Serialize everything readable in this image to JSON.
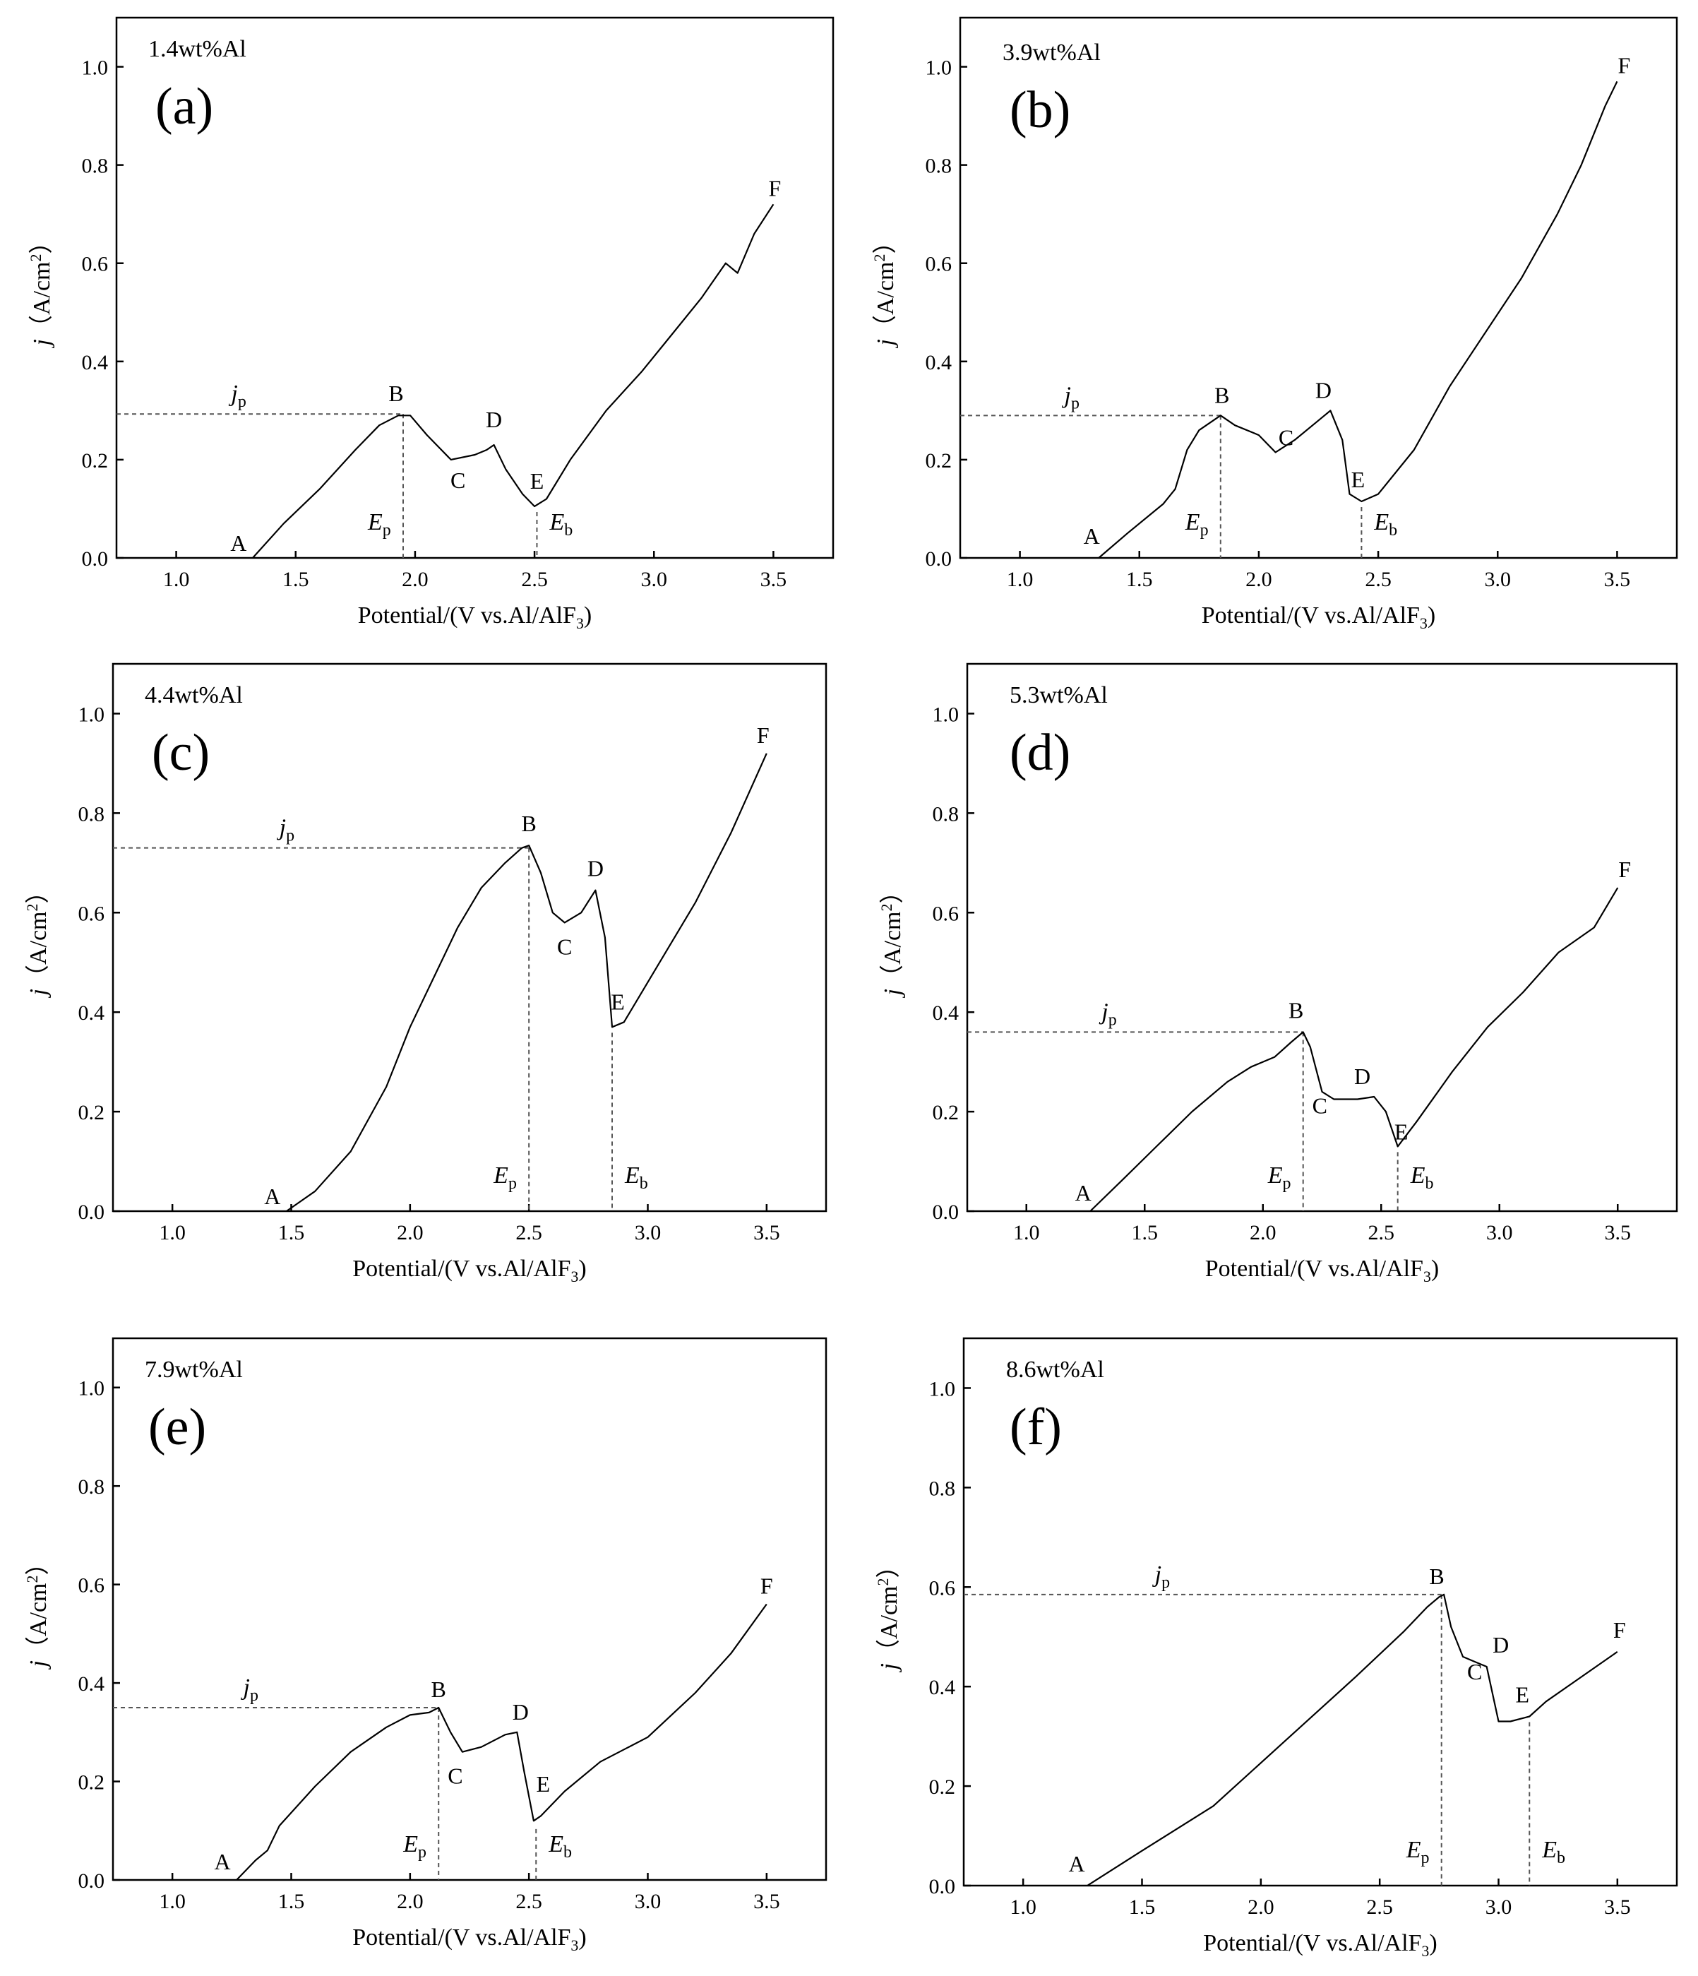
{
  "chart_data": [
    {
      "panel": "(a)",
      "type": "line",
      "title": "1.4wt%Al",
      "xlabel": "Potential/(V vs.Al/AlF3)",
      "ylabel": "j (A/cm2)",
      "xlim": [
        0.75,
        3.75
      ],
      "ylim": [
        0,
        1.1
      ],
      "xticks": [
        1.0,
        1.5,
        2.0,
        2.5,
        3.0,
        3.5
      ],
      "yticks": [
        0.0,
        0.2,
        0.4,
        0.6,
        0.8,
        1.0
      ],
      "series": [
        {
          "name": "polarization curve",
          "x": [
            1.32,
            1.45,
            1.6,
            1.75,
            1.85,
            1.93,
            1.98,
            2.05,
            2.15,
            2.25,
            2.3,
            2.33,
            2.38,
            2.45,
            2.5,
            2.55,
            2.65,
            2.8,
            2.95,
            3.05,
            3.2,
            3.3,
            3.35,
            3.42,
            3.5
          ],
          "y": [
            0.0,
            0.07,
            0.14,
            0.22,
            0.27,
            0.29,
            0.29,
            0.25,
            0.2,
            0.21,
            0.22,
            0.23,
            0.18,
            0.13,
            0.105,
            0.12,
            0.2,
            0.3,
            0.38,
            0.44,
            0.53,
            0.6,
            0.58,
            0.66,
            0.72
          ]
        }
      ],
      "points": [
        {
          "label": "A",
          "x": 1.32,
          "y": 0.0
        },
        {
          "label": "B",
          "x": 1.95,
          "y": 0.293
        },
        {
          "label": "C",
          "x": 2.15,
          "y": 0.2
        },
        {
          "label": "D",
          "x": 2.33,
          "y": 0.23
        },
        {
          "label": "E",
          "x": 2.51,
          "y": 0.105
        },
        {
          "label": "F",
          "x": 3.5,
          "y": 0.72
        }
      ],
      "jp": 0.293,
      "Ep": 1.95,
      "Eb": 2.51
    },
    {
      "panel": "(b)",
      "type": "line",
      "title": "3.9wt%Al",
      "xlabel": "Potential/(V vs.Al/AlF3)",
      "ylabel": "j (A/cm2)",
      "xlim": [
        0.75,
        3.75
      ],
      "ylim": [
        0,
        1.1
      ],
      "xticks": [
        1.0,
        1.5,
        2.0,
        2.5,
        3.0,
        3.5
      ],
      "yticks": [
        0.0,
        0.2,
        0.4,
        0.6,
        0.8,
        1.0
      ],
      "series": [
        {
          "name": "polarization curve",
          "x": [
            1.33,
            1.45,
            1.6,
            1.65,
            1.7,
            1.75,
            1.84,
            1.9,
            2.0,
            2.07,
            2.15,
            2.25,
            2.3,
            2.35,
            2.38,
            2.43,
            2.5,
            2.65,
            2.8,
            2.95,
            3.1,
            3.25,
            3.35,
            3.45,
            3.5
          ],
          "y": [
            0.0,
            0.05,
            0.11,
            0.14,
            0.22,
            0.26,
            0.29,
            0.27,
            0.25,
            0.215,
            0.24,
            0.28,
            0.3,
            0.24,
            0.13,
            0.115,
            0.13,
            0.22,
            0.35,
            0.46,
            0.57,
            0.7,
            0.8,
            0.92,
            0.97
          ]
        }
      ],
      "points": [
        {
          "label": "A",
          "x": 1.33,
          "y": 0.0
        },
        {
          "label": "B",
          "x": 1.84,
          "y": 0.29
        },
        {
          "label": "C",
          "x": 2.07,
          "y": 0.215
        },
        {
          "label": "D",
          "x": 2.3,
          "y": 0.3
        },
        {
          "label": "E",
          "x": 2.43,
          "y": 0.115
        },
        {
          "label": "F",
          "x": 3.5,
          "y": 0.97
        }
      ],
      "jp": 0.29,
      "Ep": 1.84,
      "Eb": 2.43
    },
    {
      "panel": "(c)",
      "type": "line",
      "title": "4.4wt%Al",
      "xlabel": "Potential/(V vs.Al/AlF3)",
      "ylabel": "j (A/cm2)",
      "xlim": [
        0.75,
        3.75
      ],
      "ylim": [
        0,
        1.1
      ],
      "xticks": [
        1.0,
        1.5,
        2.0,
        2.5,
        3.0,
        3.5
      ],
      "yticks": [
        0.0,
        0.2,
        0.4,
        0.6,
        0.8,
        1.0
      ],
      "series": [
        {
          "name": "polarization curve",
          "x": [
            1.48,
            1.6,
            1.75,
            1.9,
            2.0,
            2.1,
            2.2,
            2.3,
            2.4,
            2.47,
            2.5,
            2.55,
            2.6,
            2.65,
            2.72,
            2.78,
            2.82,
            2.85,
            2.9,
            3.05,
            3.2,
            3.35,
            3.5
          ],
          "y": [
            0.0,
            0.04,
            0.12,
            0.25,
            0.37,
            0.47,
            0.57,
            0.65,
            0.7,
            0.73,
            0.735,
            0.68,
            0.6,
            0.58,
            0.6,
            0.645,
            0.55,
            0.37,
            0.38,
            0.5,
            0.62,
            0.76,
            0.92
          ]
        }
      ],
      "points": [
        {
          "label": "A",
          "x": 1.48,
          "y": 0.0
        },
        {
          "label": "B",
          "x": 2.5,
          "y": 0.735
        },
        {
          "label": "C",
          "x": 2.65,
          "y": 0.58
        },
        {
          "label": "D",
          "x": 2.78,
          "y": 0.645
        },
        {
          "label": "E",
          "x": 2.85,
          "y": 0.37
        },
        {
          "label": "F",
          "x": 3.5,
          "y": 0.92
        }
      ],
      "jp": 0.73,
      "Ep": 2.5,
      "Eb": 2.85
    },
    {
      "panel": "(d)",
      "type": "line",
      "title": "5.3wt%Al",
      "xlabel": "Potential/(V vs.Al/AlF3)",
      "ylabel": "j (A/cm2)",
      "xlim": [
        0.75,
        3.75
      ],
      "ylim": [
        0,
        1.1
      ],
      "xticks": [
        1.0,
        1.5,
        2.0,
        2.5,
        3.0,
        3.5
      ],
      "yticks": [
        0.0,
        0.2,
        0.4,
        0.6,
        0.8,
        1.0
      ],
      "series": [
        {
          "name": "polarization curve",
          "x": [
            1.27,
            1.4,
            1.55,
            1.7,
            1.85,
            1.95,
            2.05,
            2.12,
            2.17,
            2.2,
            2.25,
            2.3,
            2.4,
            2.47,
            2.52,
            2.57,
            2.65,
            2.8,
            2.95,
            3.1,
            3.25,
            3.4,
            3.5
          ],
          "y": [
            0.0,
            0.06,
            0.13,
            0.2,
            0.26,
            0.29,
            0.31,
            0.34,
            0.36,
            0.33,
            0.24,
            0.225,
            0.225,
            0.23,
            0.2,
            0.13,
            0.18,
            0.28,
            0.37,
            0.44,
            0.52,
            0.57,
            0.65
          ]
        }
      ],
      "points": [
        {
          "label": "A",
          "x": 1.27,
          "y": 0.0
        },
        {
          "label": "B",
          "x": 2.17,
          "y": 0.36
        },
        {
          "label": "C",
          "x": 2.3,
          "y": 0.225
        },
        {
          "label": "D",
          "x": 2.45,
          "y": 0.23
        },
        {
          "label": "E",
          "x": 2.57,
          "y": 0.13
        },
        {
          "label": "F",
          "x": 3.5,
          "y": 0.65
        }
      ],
      "jp": 0.36,
      "Ep": 2.17,
      "Eb": 2.57
    },
    {
      "panel": "(e)",
      "type": "line",
      "title": "7.9wt%Al",
      "xlabel": "Potential/(V vs.Al/AlF3)",
      "ylabel": "j (A/cm2)",
      "xlim": [
        0.75,
        3.75
      ],
      "ylim": [
        0,
        1.1
      ],
      "xticks": [
        1.0,
        1.5,
        2.0,
        2.5,
        3.0,
        3.5
      ],
      "yticks": [
        0.0,
        0.2,
        0.4,
        0.6,
        0.8,
        1.0
      ],
      "series": [
        {
          "name": "polarization curve",
          "x": [
            1.27,
            1.35,
            1.4,
            1.45,
            1.6,
            1.75,
            1.9,
            2.0,
            2.08,
            2.12,
            2.17,
            2.22,
            2.3,
            2.4,
            2.45,
            2.48,
            2.52,
            2.55,
            2.65,
            2.8,
            3.0,
            3.2,
            3.35,
            3.5
          ],
          "y": [
            0.0,
            0.04,
            0.06,
            0.11,
            0.19,
            0.26,
            0.31,
            0.335,
            0.34,
            0.35,
            0.3,
            0.26,
            0.27,
            0.295,
            0.3,
            0.22,
            0.12,
            0.13,
            0.18,
            0.24,
            0.29,
            0.38,
            0.46,
            0.56
          ]
        }
      ],
      "points": [
        {
          "label": "A",
          "x": 1.27,
          "y": 0.0
        },
        {
          "label": "B",
          "x": 2.12,
          "y": 0.35
        },
        {
          "label": "C",
          "x": 2.22,
          "y": 0.26
        },
        {
          "label": "D",
          "x": 2.45,
          "y": 0.3
        },
        {
          "label": "E",
          "x": 2.53,
          "y": 0.115
        },
        {
          "label": "F",
          "x": 3.5,
          "y": 0.56
        }
      ],
      "jp": 0.35,
      "Ep": 2.12,
      "Eb": 2.53
    },
    {
      "panel": "(f)",
      "type": "line",
      "title": "8.6wt%Al",
      "xlabel": "Potential/(V vs.Al/AlF3)",
      "ylabel": "j (A/cm2)",
      "xlim": [
        0.75,
        3.75
      ],
      "ylim": [
        0,
        1.1
      ],
      "xticks": [
        1.0,
        1.5,
        2.0,
        2.5,
        3.0,
        3.5
      ],
      "yticks": [
        0.0,
        0.2,
        0.4,
        0.6,
        0.8,
        1.0
      ],
      "series": [
        {
          "name": "polarization curve",
          "x": [
            1.27,
            1.5,
            1.8,
            2.1,
            2.4,
            2.6,
            2.7,
            2.75,
            2.77,
            2.8,
            2.85,
            2.9,
            2.95,
            3.0,
            3.05,
            3.13,
            3.2,
            3.35,
            3.5
          ],
          "y": [
            0.0,
            0.07,
            0.16,
            0.29,
            0.42,
            0.51,
            0.56,
            0.58,
            0.585,
            0.52,
            0.46,
            0.45,
            0.44,
            0.33,
            0.33,
            0.34,
            0.37,
            0.42,
            0.47
          ]
        }
      ],
      "points": [
        {
          "label": "A",
          "x": 1.27,
          "y": 0.0
        },
        {
          "label": "B",
          "x": 2.77,
          "y": 0.585
        },
        {
          "label": "C",
          "x": 2.87,
          "y": 0.45
        },
        {
          "label": "D",
          "x": 2.95,
          "y": 0.44
        },
        {
          "label": "E",
          "x": 3.13,
          "y": 0.34
        },
        {
          "label": "F",
          "x": 3.5,
          "y": 0.47
        }
      ],
      "jp": 0.585,
      "Ep": 2.76,
      "Eb": 3.13
    }
  ]
}
